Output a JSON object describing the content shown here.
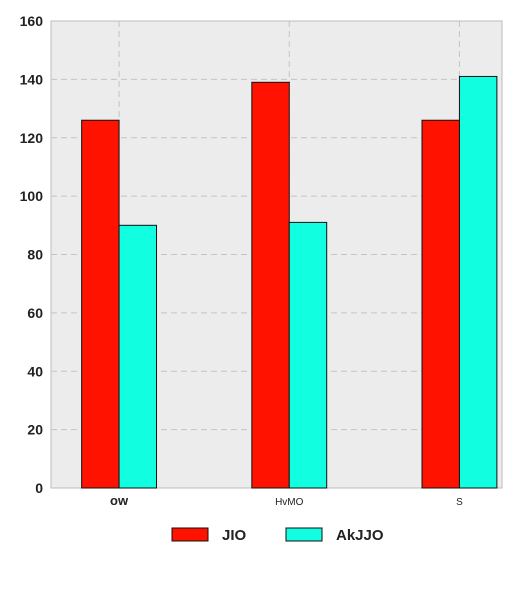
{
  "chart_data": {
    "type": "bar",
    "title": "",
    "xlabel": "",
    "ylabel": "",
    "categories": [
      "ow",
      "HvMO",
      "S"
    ],
    "series": [
      {
        "name": "JIO",
        "values": [
          126,
          139,
          126
        ],
        "color": "#ff1300"
      },
      {
        "name": "AkJJO",
        "values": [
          90,
          91,
          141
        ],
        "color": "#11ffe0"
      }
    ],
    "ylim": [
      0,
      160
    ],
    "yticks": [
      0,
      20,
      40,
      60,
      80,
      100,
      120,
      140,
      160
    ],
    "grid": true,
    "legend_position": "bottom-center",
    "background": "#ececec"
  }
}
